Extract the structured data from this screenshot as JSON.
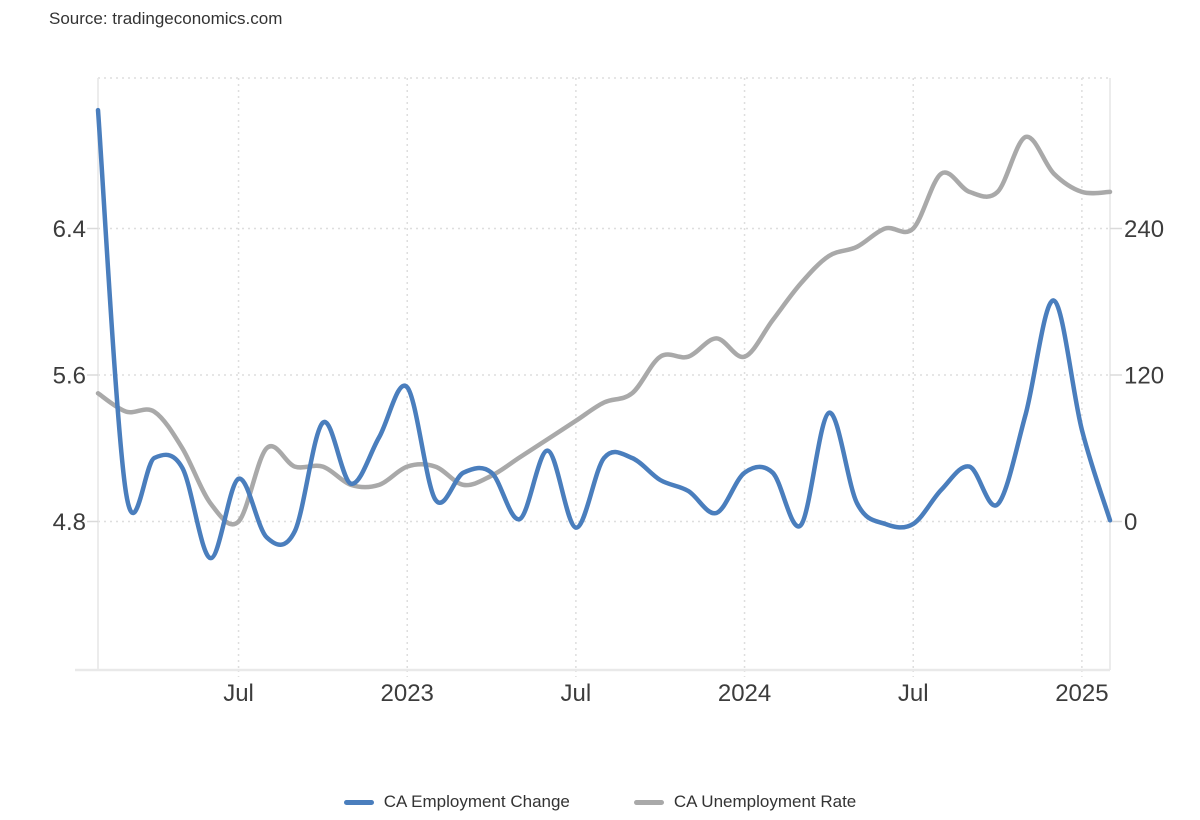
{
  "source": {
    "label": "Source: tradingeconomics.com"
  },
  "legend": [
    {
      "label": "CA Employment Change",
      "color": "#4a7ebd"
    },
    {
      "label": "CA Unemployment Rate",
      "color": "#a9a9a9"
    }
  ],
  "axes": {
    "left_ticks": [
      {
        "label": "6.4",
        "value": 6.4
      },
      {
        "label": "5.6",
        "value": 5.6
      },
      {
        "label": "4.8",
        "value": 4.8
      }
    ],
    "right_ticks": [
      {
        "label": "240",
        "value": 240
      },
      {
        "label": "120",
        "value": 120
      },
      {
        "label": "0",
        "value": 0
      }
    ],
    "x_ticks": [
      {
        "label": "Jul",
        "month_index": 5
      },
      {
        "label": "2023",
        "month_index": 11
      },
      {
        "label": "Jul",
        "month_index": 17
      },
      {
        "label": "2024",
        "month_index": 23
      },
      {
        "label": "Jul",
        "month_index": 29
      },
      {
        "label": "2025",
        "month_index": 35
      }
    ]
  },
  "chart_data": {
    "type": "line",
    "x": [
      "2022-02",
      "2022-03",
      "2022-04",
      "2022-05",
      "2022-06",
      "2022-07",
      "2022-08",
      "2022-09",
      "2022-10",
      "2022-11",
      "2022-12",
      "2023-01",
      "2023-02",
      "2023-03",
      "2023-04",
      "2023-05",
      "2023-06",
      "2023-07",
      "2023-08",
      "2023-09",
      "2023-10",
      "2023-11",
      "2023-12",
      "2024-01",
      "2024-02",
      "2024-03",
      "2024-04",
      "2024-05",
      "2024-06",
      "2024-07",
      "2024-08",
      "2024-09",
      "2024-10",
      "2024-11",
      "2024-12",
      "2025-01",
      "2025-02"
    ],
    "series": [
      {
        "name": "CA Employment Change",
        "axis": "right",
        "color": "#4a7ebd",
        "values": [
          337,
          23,
          52,
          44,
          -30,
          35,
          -13,
          -8,
          81,
          31,
          69,
          110,
          18,
          40,
          40,
          2,
          58,
          -5,
          52,
          52,
          34,
          25,
          7,
          40,
          40,
          -3,
          89,
          15,
          -2,
          -2,
          26,
          45,
          14,
          88,
          181,
          75,
          1
        ]
      },
      {
        "name": "CA Unemployment Rate",
        "axis": "left",
        "color": "#a9a9a9",
        "values": [
          5.5,
          5.4,
          5.4,
          5.2,
          4.9,
          4.8,
          5.2,
          5.1,
          5.1,
          5.0,
          5.0,
          5.1,
          5.1,
          5.0,
          5.05,
          5.15,
          5.25,
          5.35,
          5.45,
          5.5,
          5.7,
          5.7,
          5.8,
          5.7,
          5.9,
          6.1,
          6.25,
          6.3,
          6.4,
          6.4,
          6.7,
          6.6,
          6.6,
          6.9,
          6.7,
          6.6,
          6.6
        ]
      }
    ],
    "left_axis": {
      "ticks": [
        6.4,
        5.6,
        4.8
      ],
      "unit": "percent"
    },
    "right_axis": {
      "ticks": [
        240,
        120,
        0
      ],
      "unit": "thousand"
    },
    "grid": "dotted",
    "legend_position": "bottom",
    "title": ""
  }
}
